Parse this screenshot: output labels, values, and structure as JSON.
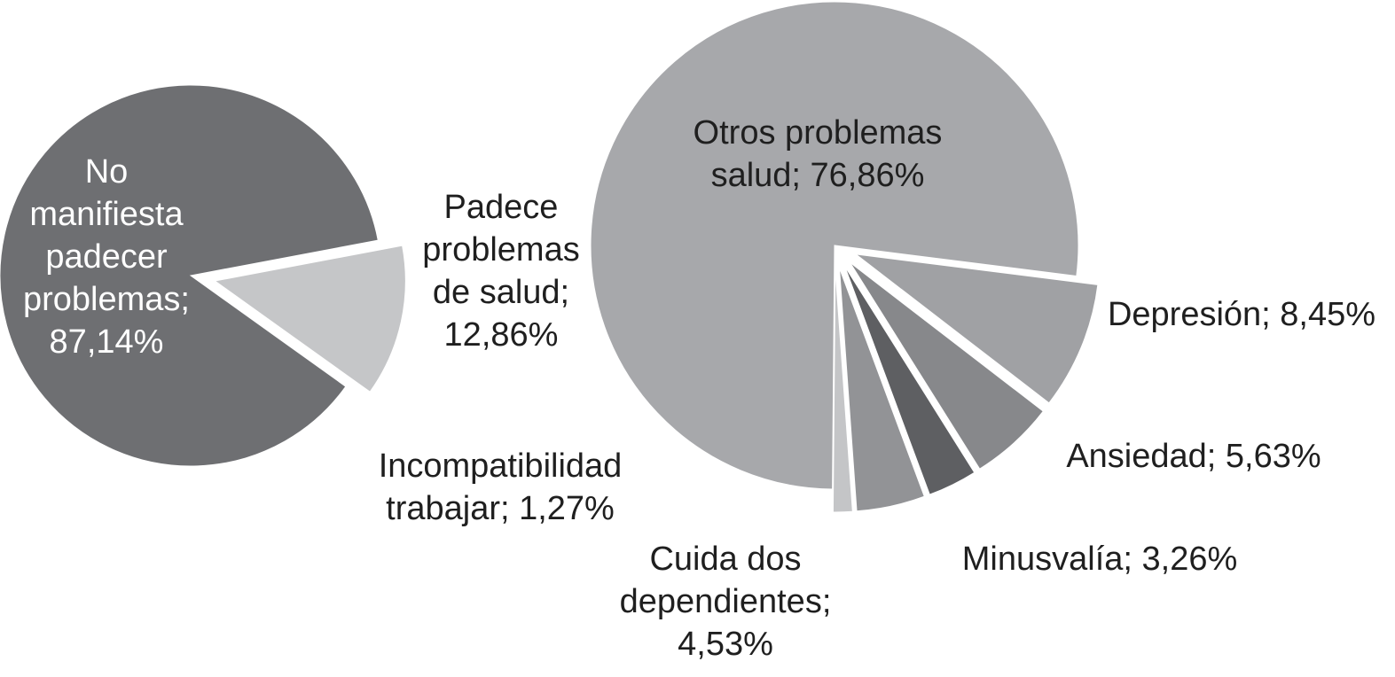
{
  "chart_data": [
    {
      "type": "pie",
      "slices": [
        {
          "label_lines": [
            "No",
            "manifiesta",
            "padecer",
            "problemas;",
            "87,14%"
          ],
          "value": 87.14,
          "color": "#6e6f72",
          "label_color": "#ffffff"
        },
        {
          "label_lines": [
            "Padece",
            "problemas",
            "de salud;",
            "12,86%"
          ],
          "value": 12.86,
          "color": "#c5c6c8",
          "label_color": "#1f1f1f"
        }
      ]
    },
    {
      "type": "pie",
      "slices": [
        {
          "label_lines": [
            "Otros problemas",
            "salud; 76,86%"
          ],
          "value": 76.86,
          "color": "#a7a8ab",
          "label_color": "#1f1f1f"
        },
        {
          "label_lines": [
            "Depresión; 8,45%"
          ],
          "value": 8.45,
          "color": "#a0a1a4",
          "label_color": "#1f1f1f"
        },
        {
          "label_lines": [
            "Ansiedad; 5,63%"
          ],
          "value": 5.63,
          "color": "#87888b",
          "label_color": "#1f1f1f"
        },
        {
          "label_lines": [
            "Minusvalía; 3,26%"
          ],
          "value": 3.26,
          "color": "#5e5f62",
          "label_color": "#1f1f1f"
        },
        {
          "label_lines": [
            "Cuida dos",
            "dependientes;",
            "4,53%"
          ],
          "value": 4.53,
          "color": "#929396",
          "label_color": "#1f1f1f"
        },
        {
          "label_lines": [
            "Incompatibilidad",
            "trabajar; 1,27%"
          ],
          "value": 1.27,
          "color": "#c4c5c7",
          "label_color": "#1f1f1f"
        }
      ]
    }
  ]
}
